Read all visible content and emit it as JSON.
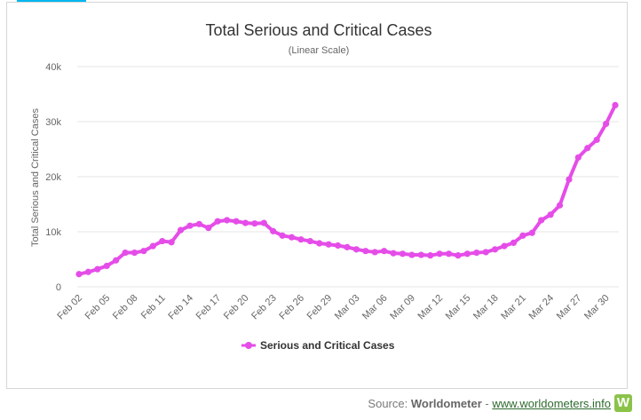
{
  "chart_data": {
    "type": "line",
    "title": "Total Serious and Critical Cases",
    "subtitle": "(Linear Scale)",
    "ylabel": "Total Serious and Critical Cases",
    "xlabel": "",
    "ylim": [
      0,
      40000
    ],
    "yticks": [
      0,
      10000,
      20000,
      30000,
      40000
    ],
    "ytick_labels": [
      "0",
      "10k",
      "20k",
      "30k",
      "40k"
    ],
    "grid": true,
    "legend_placement": "bottom-center",
    "x": [
      "Feb 02",
      "Feb 03",
      "Feb 04",
      "Feb 05",
      "Feb 06",
      "Feb 07",
      "Feb 08",
      "Feb 09",
      "Feb 10",
      "Feb 11",
      "Feb 12",
      "Feb 13",
      "Feb 14",
      "Feb 15",
      "Feb 16",
      "Feb 17",
      "Feb 18",
      "Feb 19",
      "Feb 20",
      "Feb 21",
      "Feb 22",
      "Feb 23",
      "Feb 24",
      "Feb 25",
      "Feb 26",
      "Feb 27",
      "Feb 28",
      "Feb 29",
      "Mar 01",
      "Mar 02",
      "Mar 03",
      "Mar 04",
      "Mar 05",
      "Mar 06",
      "Mar 07",
      "Mar 08",
      "Mar 09",
      "Mar 10",
      "Mar 11",
      "Mar 12",
      "Mar 13",
      "Mar 14",
      "Mar 15",
      "Mar 16",
      "Mar 17",
      "Mar 18",
      "Mar 19",
      "Mar 20",
      "Mar 21",
      "Mar 22",
      "Mar 23",
      "Mar 24",
      "Mar 25",
      "Mar 26",
      "Mar 27",
      "Mar 28",
      "Mar 29",
      "Mar 30",
      "Mar 31"
    ],
    "xtick_labels": [
      "Feb 02",
      "Feb 05",
      "Feb 08",
      "Feb 11",
      "Feb 14",
      "Feb 17",
      "Feb 20",
      "Feb 23",
      "Feb 26",
      "Feb 29",
      "Mar 03",
      "Mar 06",
      "Mar 09",
      "Mar 12",
      "Mar 15",
      "Mar 18",
      "Mar 21",
      "Mar 24",
      "Mar 27",
      "Mar 30"
    ],
    "series": [
      {
        "name": "Serious and Critical Cases",
        "color": "#e54de8",
        "values": [
          2300,
          2700,
          3200,
          3800,
          4800,
          6200,
          6200,
          6500,
          7400,
          8300,
          8100,
          10300,
          11100,
          11400,
          10700,
          11900,
          12100,
          11900,
          11600,
          11500,
          11600,
          10100,
          9300,
          9000,
          8600,
          8300,
          7900,
          7700,
          7500,
          7200,
          6800,
          6500,
          6300,
          6500,
          6100,
          6000,
          5800,
          5800,
          5700,
          6000,
          6000,
          5700,
          6000,
          6200,
          6300,
          6800,
          7400,
          8000,
          9300,
          9800,
          12100,
          13100,
          14800,
          19500,
          23500,
          25200,
          26700,
          29600,
          33000
        ]
      }
    ]
  },
  "source": {
    "prefix": "Source: ",
    "brand": "Worldometer",
    "separator": " - ",
    "link": "www.worldometers.info",
    "logo_letter": "W"
  },
  "colors": {
    "line": "#e54de8",
    "grid": "#e6e6e6",
    "axis_text": "#666666",
    "title": "#333333",
    "accent_bar": "#00b7f0",
    "logo": "#8bc34a"
  }
}
